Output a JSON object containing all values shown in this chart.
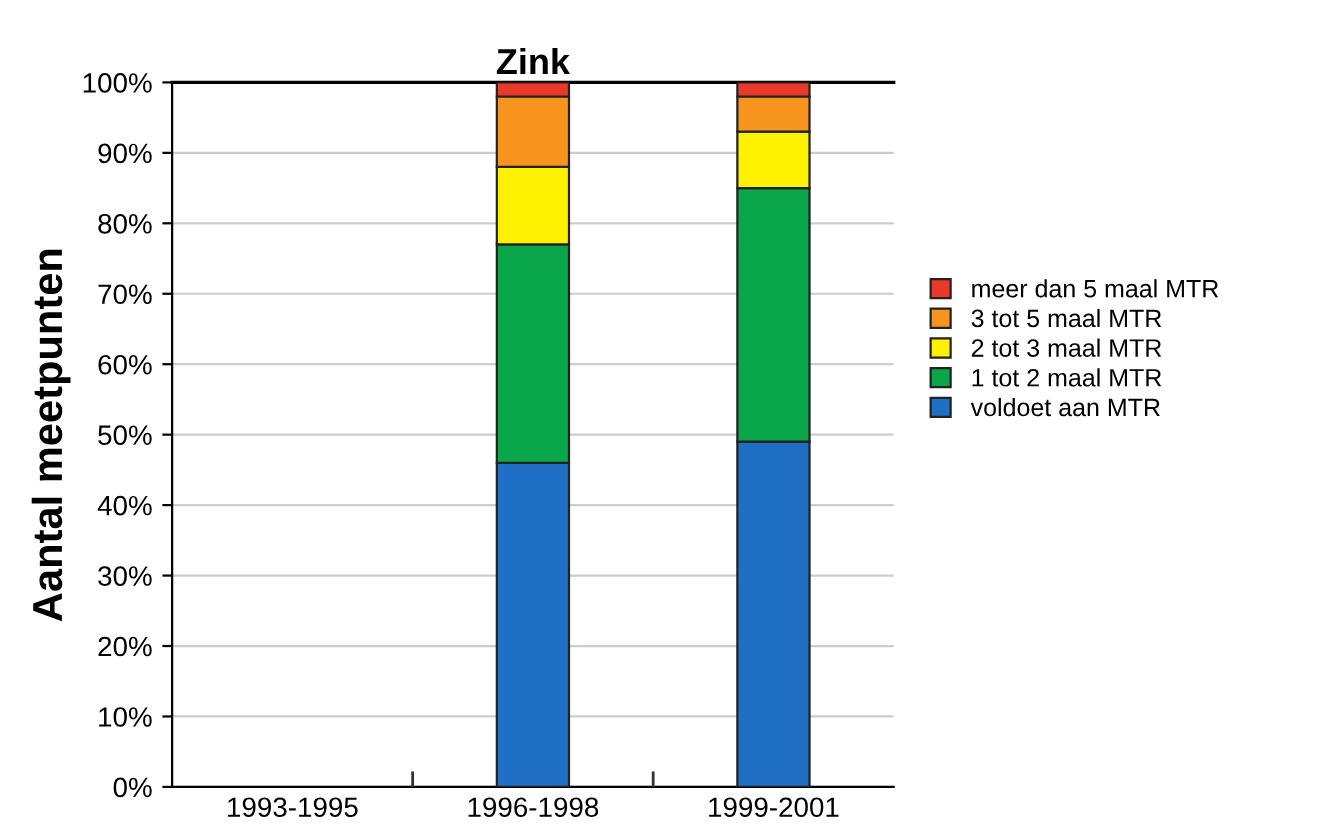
{
  "chart_data": {
    "type": "bar",
    "title": "Zink",
    "ylabel": "Aantal meetpunten",
    "stacked": true,
    "categories": [
      "1993-1995",
      "1996-1998",
      "1999-2001"
    ],
    "series": [
      {
        "name": "voldoet aan MTR",
        "color": "#1f6fc5",
        "values": [
          null,
          46,
          49
        ]
      },
      {
        "name": "1 tot 2 maal MTR",
        "color": "#0aa64a",
        "values": [
          null,
          31,
          36
        ]
      },
      {
        "name": "2 tot 3 maal MTR",
        "color": "#fff200",
        "values": [
          null,
          11,
          8
        ]
      },
      {
        "name": "3 tot 5 maal MTR",
        "color": "#f7941d",
        "values": [
          null,
          10,
          5
        ]
      },
      {
        "name": "meer dan 5 maal MTR",
        "color": "#e8392a",
        "values": [
          null,
          2,
          2
        ]
      }
    ],
    "ylim": [
      0,
      100
    ],
    "yticks": [
      {
        "value": 0,
        "label": "0%"
      },
      {
        "value": 10,
        "label": "10%"
      },
      {
        "value": 20,
        "label": "20%"
      },
      {
        "value": 30,
        "label": "30%"
      },
      {
        "value": 40,
        "label": "40%"
      },
      {
        "value": 50,
        "label": "50%"
      },
      {
        "value": 60,
        "label": "60%"
      },
      {
        "value": 70,
        "label": "70%"
      },
      {
        "value": 80,
        "label": "80%"
      },
      {
        "value": 90,
        "label": "90%"
      },
      {
        "value": 100,
        "label": "100%"
      }
    ],
    "grid": "y",
    "legend": "right"
  }
}
